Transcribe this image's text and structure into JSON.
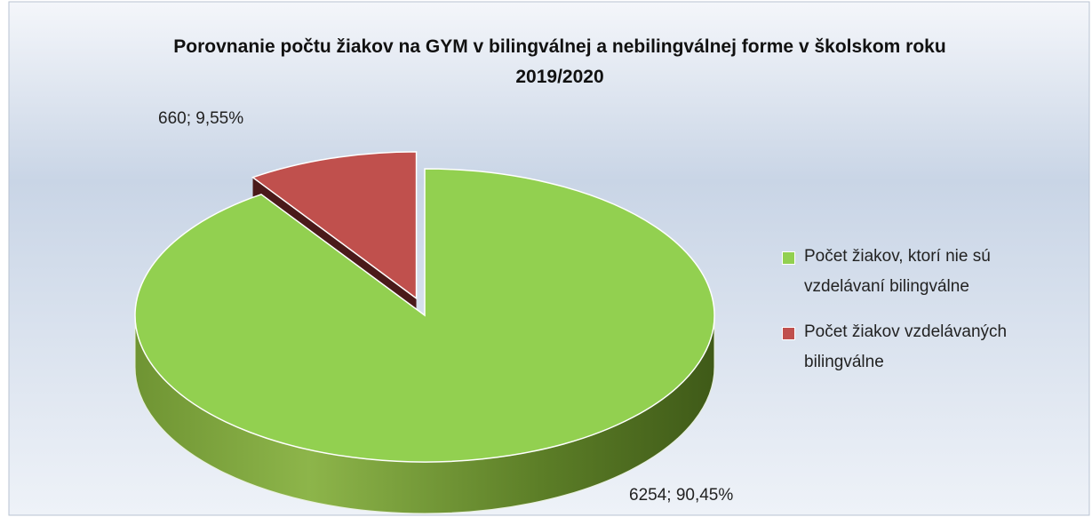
{
  "chart_data": {
    "type": "pie",
    "title": "Porovnanie počtu žiakov na GYM v bilingválnej a nebilingválnej forme v školskom roku 2019/2020",
    "categories": [
      "Počet žiakov, ktorí nie sú vzdelávaní bilingválne",
      "Počet žiakov vzdelávaných bilingválne"
    ],
    "values": [
      6254,
      660
    ],
    "value_labels": [
      "6254; 90,45%",
      "660; 9,55%"
    ],
    "colors": [
      "#92d050",
      "#c0504d"
    ],
    "legend": "right"
  }
}
